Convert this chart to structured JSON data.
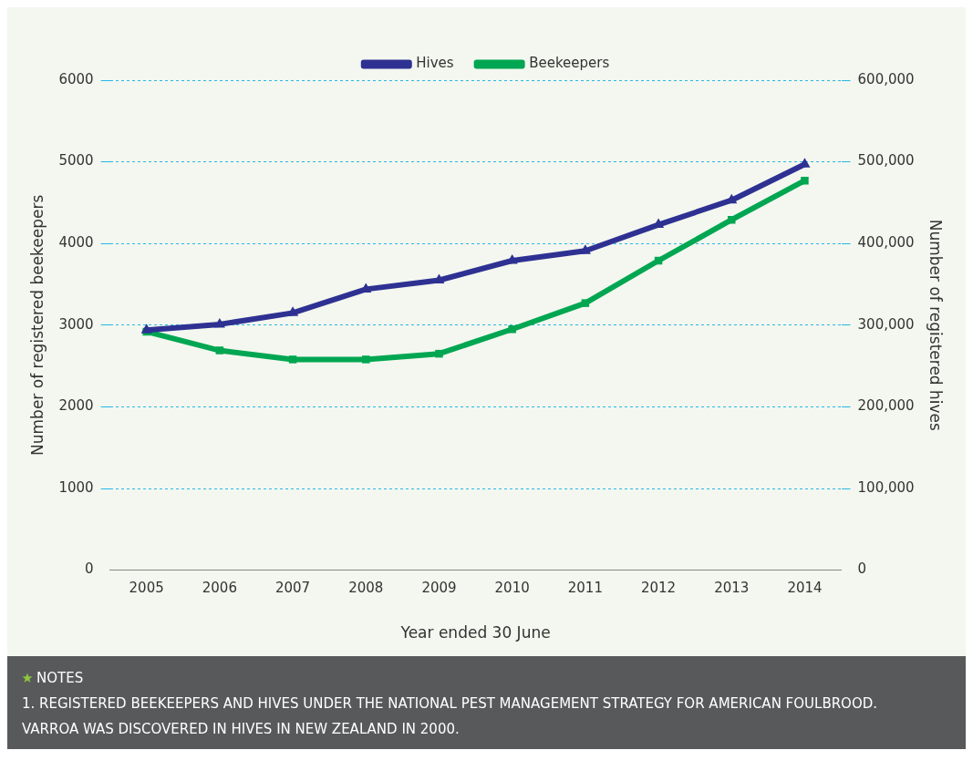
{
  "chart_data": {
    "type": "line",
    "xlabel": "Year ended 30 June",
    "ylabel": "Number of registered beekeepers",
    "y2label": "Number of registered hives",
    "categories": [
      "2005",
      "2006",
      "2007",
      "2008",
      "2009",
      "2010",
      "2011",
      "2012",
      "2013",
      "2014"
    ],
    "series": [
      {
        "name": "Beekeepers",
        "color": "#00a651",
        "marker": "square",
        "values": [
          2920,
          2690,
          2580,
          2580,
          2650,
          2950,
          3270,
          3790,
          4290,
          4770
        ]
      },
      {
        "name": "Hives",
        "color": "#2e3192",
        "marker": "triangle",
        "axis": "y2",
        "values": [
          294000,
          301000,
          315000,
          344000,
          355000,
          379000,
          391000,
          423000,
          453000,
          497000
        ]
      }
    ],
    "ylim": [
      0,
      6000
    ],
    "yticks": [
      0,
      1000,
      2000,
      3000,
      4000,
      5000,
      6000
    ],
    "y2lim": [
      0,
      600000
    ],
    "y2ticks": [
      {
        "value": 0,
        "label": "0"
      },
      {
        "value": 100000,
        "label": "100,000"
      },
      {
        "value": 200000,
        "label": "200,000"
      },
      {
        "value": 300000,
        "label": "300,000"
      },
      {
        "value": 400000,
        "label": "400,000"
      },
      {
        "value": 500000,
        "label": "500,000"
      },
      {
        "value": 600000,
        "label": "600,000"
      }
    ],
    "grid": "y",
    "legend": "top",
    "line_style": "solid",
    "annotations": [
      "NOTES",
      "1. REGISTERED BEEKEEPERS AND HIVES UNDER THE NATIONAL PEST MANAGEMENT STRATEGY FOR AMERICAN FOULBROOD.",
      "VARROA WAS DISCOVERED IN HIVES IN NEW ZEALAND IN 2000."
    ]
  }
}
